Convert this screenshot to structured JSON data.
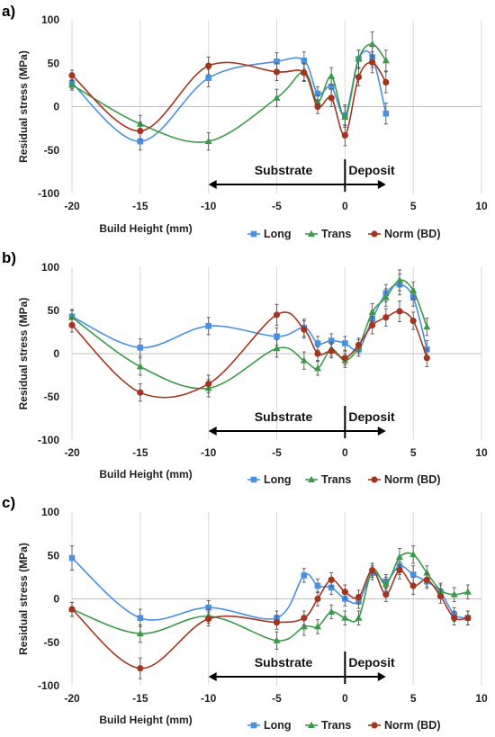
{
  "colors": {
    "Long": "#4a90e2",
    "Trans": "#3c9a4a",
    "Norm": "#a23520",
    "grid": "#d9d9d9",
    "text": "#222222"
  },
  "chart_data": [
    {
      "type": "line",
      "panel_label": "a)",
      "xlabel": "Build Height (mm)",
      "ylabel": "Residual stress (MPa)",
      "xlim": [
        -20,
        10
      ],
      "ylim": [
        -100,
        100
      ],
      "x_ticks": [
        -20,
        -15,
        -10,
        -5,
        0,
        5,
        10
      ],
      "y_ticks": [
        100,
        50,
        0,
        -50,
        -100
      ],
      "grid": "vertical",
      "legend": "bottom",
      "annotations": {
        "left": "Substrate",
        "right": "Deposit",
        "arrow_from": -10,
        "arrow_split": 0,
        "arrow_to": 3
      },
      "series": [
        {
          "name": "Long",
          "marker": "square",
          "x": [
            -20,
            -15,
            -10,
            -5,
            -3,
            -2,
            -1,
            0,
            1,
            2,
            3
          ],
          "y": [
            27,
            -40,
            33,
            52,
            53,
            15,
            23,
            -10,
            55,
            57,
            -8
          ],
          "err": [
            6,
            10,
            10,
            10,
            10,
            8,
            10,
            12,
            10,
            12,
            12
          ]
        },
        {
          "name": "Trans",
          "marker": "triangle",
          "x": [
            -20,
            -15,
            -10,
            -5,
            -3,
            -2,
            -1,
            0,
            1,
            2,
            3
          ],
          "y": [
            25,
            -20,
            -40,
            10,
            40,
            5,
            35,
            -12,
            55,
            72,
            53
          ],
          "err": [
            6,
            10,
            10,
            10,
            10,
            8,
            10,
            12,
            10,
            14,
            12
          ]
        },
        {
          "name": "Norm (BD)",
          "marker": "circle",
          "x": [
            -20,
            -15,
            -10,
            -5,
            -3,
            -2,
            -1,
            0,
            1,
            2,
            3
          ],
          "y": [
            36,
            -28,
            47,
            40,
            39,
            0,
            10,
            -33,
            34,
            51,
            28
          ],
          "err": [
            6,
            10,
            10,
            10,
            10,
            8,
            10,
            12,
            10,
            12,
            12
          ]
        }
      ]
    },
    {
      "type": "line",
      "panel_label": "b)",
      "xlabel": "Build Height (mm)",
      "ylabel": "Residual stress (MPa)",
      "xlim": [
        -20,
        10
      ],
      "ylim": [
        -100,
        100
      ],
      "x_ticks": [
        -20,
        -15,
        -10,
        -5,
        0,
        5,
        10
      ],
      "y_ticks": [
        100,
        50,
        0,
        -50,
        -100
      ],
      "grid": "vertical",
      "legend": "bottom",
      "annotations": {
        "left": "Substrate",
        "right": "Deposit",
        "arrow_from": -10,
        "arrow_split": 0,
        "arrow_to": 3
      },
      "series": [
        {
          "name": "Long",
          "marker": "square",
          "x": [
            -20,
            -15,
            -10,
            -5,
            -3,
            -2,
            -1,
            0,
            1,
            2,
            3,
            4,
            5,
            6
          ],
          "y": [
            43,
            7,
            32,
            20,
            30,
            12,
            15,
            12,
            5,
            40,
            70,
            80,
            65,
            5
          ],
          "err": [
            8,
            10,
            10,
            10,
            10,
            8,
            8,
            8,
            8,
            10,
            10,
            12,
            10,
            10
          ]
        },
        {
          "name": "Trans",
          "marker": "triangle",
          "x": [
            -20,
            -15,
            -10,
            -5,
            -3,
            -2,
            -1,
            0,
            1,
            2,
            3,
            4,
            5,
            6
          ],
          "y": [
            42,
            -15,
            -40,
            6,
            -8,
            -17,
            5,
            -8,
            8,
            48,
            65,
            85,
            73,
            31
          ],
          "err": [
            8,
            10,
            10,
            10,
            10,
            8,
            8,
            8,
            8,
            10,
            10,
            12,
            10,
            10
          ]
        },
        {
          "name": "Norm (BD)",
          "marker": "circle",
          "x": [
            -20,
            -15,
            -10,
            -5,
            -3,
            -2,
            -1,
            0,
            1,
            2,
            3,
            4,
            5,
            6
          ],
          "y": [
            33,
            -45,
            -35,
            45,
            28,
            0,
            3,
            -5,
            10,
            33,
            42,
            49,
            38,
            -5
          ],
          "err": [
            8,
            10,
            10,
            12,
            10,
            8,
            8,
            8,
            8,
            10,
            10,
            12,
            10,
            10
          ]
        }
      ]
    },
    {
      "type": "line",
      "panel_label": "c)",
      "xlabel": "Build Height (mm)",
      "ylabel": "Residual stress (MPa)",
      "xlim": [
        -20,
        10
      ],
      "ylim": [
        -100,
        100
      ],
      "x_ticks": [
        -20,
        -15,
        -10,
        -5,
        0,
        5,
        10
      ],
      "y_ticks": [
        100,
        50,
        0,
        -50,
        -100
      ],
      "grid": "vertical",
      "legend": "bottom",
      "annotations": {
        "left": "Substrate",
        "right": "Deposit",
        "arrow_from": -10,
        "arrow_split": 0,
        "arrow_to": 3
      },
      "series": [
        {
          "name": "Long",
          "marker": "square",
          "x": [
            -20,
            -15,
            -10,
            -5,
            -3,
            -2,
            -1,
            0,
            1,
            2,
            3,
            4,
            5,
            6,
            7,
            8,
            9
          ],
          "y": [
            47,
            -22,
            -10,
            -22,
            27,
            15,
            13,
            0,
            -3,
            30,
            20,
            38,
            28,
            20,
            8,
            -18,
            -22
          ],
          "err": [
            14,
            10,
            8,
            8,
            8,
            8,
            8,
            8,
            8,
            8,
            8,
            10,
            10,
            8,
            8,
            8,
            8
          ]
        },
        {
          "name": "Trans",
          "marker": "triangle",
          "x": [
            -20,
            -15,
            -10,
            -5,
            -3,
            -2,
            -1,
            0,
            1,
            2,
            3,
            4,
            5,
            6,
            7,
            8,
            9
          ],
          "y": [
            -12,
            -40,
            -20,
            -48,
            -32,
            -32,
            -15,
            -22,
            -22,
            33,
            17,
            48,
            51,
            30,
            10,
            5,
            8
          ],
          "err": [
            8,
            10,
            8,
            10,
            10,
            8,
            8,
            8,
            8,
            8,
            8,
            10,
            10,
            8,
            8,
            8,
            8
          ]
        },
        {
          "name": "Norm (BD)",
          "marker": "circle",
          "x": [
            -20,
            -15,
            -10,
            -5,
            -3,
            -2,
            -1,
            0,
            1,
            2,
            3,
            4,
            5,
            6,
            7,
            8,
            9
          ],
          "y": [
            -12,
            -80,
            -23,
            -27,
            -22,
            0,
            22,
            8,
            2,
            33,
            5,
            33,
            15,
            22,
            3,
            -22,
            -22
          ],
          "err": [
            8,
            12,
            8,
            8,
            8,
            8,
            8,
            8,
            8,
            8,
            8,
            10,
            10,
            8,
            8,
            8,
            8
          ]
        }
      ]
    }
  ]
}
